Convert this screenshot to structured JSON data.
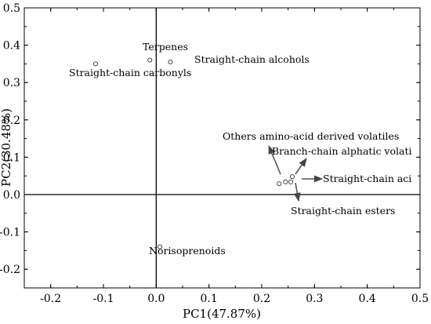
{
  "chart_data": {
    "type": "scatter",
    "xlabel": "PC1(47.87%)",
    "ylabel": "PC2(30.48%)",
    "xlim": [
      -0.25,
      0.5
    ],
    "ylim": [
      -0.25,
      0.5
    ],
    "x_ticks": [
      "-0.2",
      "-0.1",
      "0.0",
      "0.1",
      "0.2",
      "0.3",
      "0.4",
      "0.5"
    ],
    "y_ticks": [
      "-0.2",
      "-0.1",
      "0.0",
      "0.1",
      "0.2",
      "0.3",
      "0.4",
      "0.5"
    ],
    "grid": false,
    "points": [
      {
        "label": "Terpenes",
        "x": -0.012,
        "y": 0.36
      },
      {
        "label": "Straight-chain alcohols",
        "x": 0.027,
        "y": 0.355
      },
      {
        "label": "Straight-chain carbonyls",
        "x": -0.115,
        "y": 0.35
      },
      {
        "label": "Others amino-acid derived volatiles",
        "x": 0.233,
        "y": 0.029
      },
      {
        "label": "Branch-chain alphatic volati",
        "x": 0.258,
        "y": 0.048
      },
      {
        "label": "Straight-chain aci",
        "x": 0.255,
        "y": 0.034
      },
      {
        "label": "Straight-chain esters",
        "x": 0.245,
        "y": 0.034
      },
      {
        "label": "Norisoprenoids",
        "x": 0.007,
        "y": -0.14
      }
    ]
  }
}
